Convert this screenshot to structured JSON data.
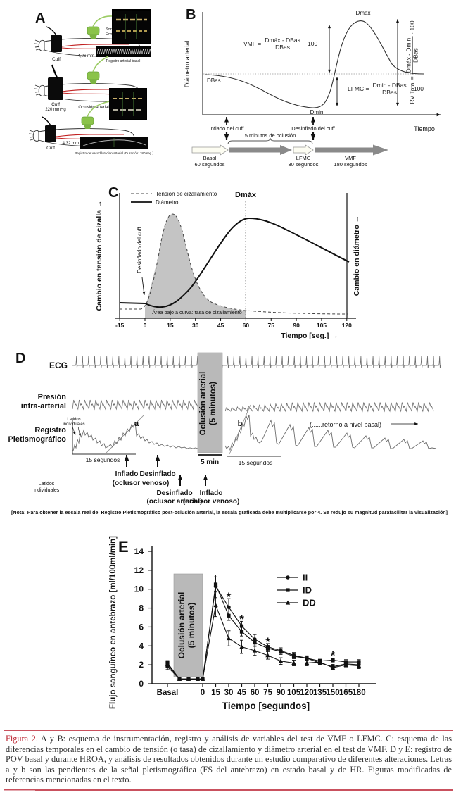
{
  "colors": {
    "accent_red": "#bb2430",
    "rule_red": "#c9515e",
    "artery_red": "#c22222",
    "probe_green": "#8bc34a",
    "occlusion_gray": "#b9b9b9",
    "trace_gray": "#6d6d6d"
  },
  "panelA": {
    "label": "A",
    "probe_label1": "Sonda",
    "probe_label2": "Ecográfica",
    "rows": [
      {
        "cuff": "Cuff",
        "measurement": "4,06 mm",
        "record": "Registro arterial basal"
      },
      {
        "cuff": "Cuff",
        "pressure": "220 mmHg",
        "occlusion": "Oclusión arterial"
      },
      {
        "cuff": "Cuff",
        "measurement": "4,32 mm",
        "record": "Registro de vasodilatación arterial (Duración: 180 seg.)"
      }
    ]
  },
  "panelB": {
    "label": "B",
    "y_axis": "Diámetro arterial",
    "x_axis": "Tiempo",
    "dbas": "DBas",
    "dmin": "Dmin",
    "dmax": "Dmáx",
    "inflate": "Inflado del cuff",
    "deflate": "Desinflado del cuff",
    "occlusion_brace": "5 minutos de oclusión",
    "formulas": {
      "vmf": {
        "lhs": "VMF =",
        "num": "Dmáx - DBas",
        "den": "DBas",
        "rhs": "· 100"
      },
      "lfmc": {
        "lhs": "LFMC =",
        "num": "Dmin - DBas",
        "den": "DBas",
        "rhs": "· 100"
      },
      "rv": {
        "lhs": "RV Total =",
        "num": "Dmáx - Dmin",
        "den": "DBas",
        "rhs": "· 100"
      }
    },
    "timeline": [
      {
        "name": "Basal",
        "dur": "60 segundos"
      },
      {
        "name": "LFMC",
        "dur": "30 segundos"
      },
      {
        "name": "VMF",
        "dur": "180 segundos"
      }
    ]
  },
  "panelC": {
    "label": "C",
    "legend": [
      {
        "label": "Tensión de cizallamiento"
      },
      {
        "label": "Diámetro"
      }
    ],
    "dmax": "Dmáx",
    "deflate": "Desinflado del cuff",
    "area_label": "Área bajo a curva: tasa de cizallamiento",
    "y_left": "Cambio en tensión de cizalla →",
    "y_right": "Cambio en diámetro →",
    "x_ticks": [
      "-15",
      "0",
      "15",
      "30",
      "45",
      "60",
      "75",
      "90",
      "105",
      "120"
    ],
    "x_label": "Tiempo [seg.] →"
  },
  "panelD": {
    "label": "D",
    "ecg": "ECG",
    "pressure1": "Presión",
    "pressure2": "intra-arterial",
    "pleth1": "Registro",
    "pleth2": "Pletismográfico",
    "occlusion": [
      "Oclusión arterial",
      "(5 minutos)"
    ],
    "scale_pre": "15 segundos",
    "scale_occ": "5 min",
    "scale_post": "15 segundos",
    "latidos_small1": "Latidos",
    "latidos_small2": "individuales",
    "latidos1": "Latidos",
    "latidos2": "individuales",
    "a": "a",
    "b": "b",
    "inflado1": "Inflado",
    "desinflado1": "Desinflado",
    "oclusor_venoso1": "(oclusor venoso)",
    "desinflado2": "Desinflado",
    "oclusor_arterial": "(oclusor arterial)",
    "inflado2": "Inflado",
    "oclusor_venoso2": "(oclusor venoso)",
    "retorno": "(......retorno a nivel basal)",
    "note": "[Nota: Para obtener la escala real del Registro Pletismográfico post-oclusión arterial, la escala graficada debe multiplicarse por 4. Se redujo su magnitud parafacilitar la visualización]"
  },
  "panelE": {
    "label": "E"
  },
  "chart_data": {
    "type": "line",
    "ylabel": "Flujo sanguíneo en antebrazo [ml/100ml/min]",
    "xlabel": "Tiempo [segundos]",
    "ylim": [
      0,
      14
    ],
    "yticks": [
      0,
      2,
      4,
      6,
      8,
      10,
      12,
      14
    ],
    "x_ticks": [
      "Basal",
      "0",
      "15",
      "30",
      "45",
      "60",
      "75",
      "90",
      "105",
      "120",
      "135",
      "150",
      "165",
      "180"
    ],
    "times": [
      0,
      15,
      30,
      45,
      60,
      75,
      90,
      105,
      120,
      135,
      150,
      165,
      180
    ],
    "occlusion_label": [
      "Oclusión arterial",
      "(5 minutos)"
    ],
    "legend_position": "upper right",
    "grid": false,
    "series": [
      {
        "name": "II",
        "marker": "circle",
        "basal": 1.8,
        "basal_err": 0.3,
        "occlusion": [
          0.5,
          0.5,
          0.5
        ],
        "values": [
          0.5,
          10.3,
          8.1,
          6.1,
          4.7,
          3.9,
          3.5,
          3.0,
          2.7,
          2.2,
          1.8,
          2.1,
          2.0
        ],
        "err": [
          0,
          1.2,
          0.9,
          0.5,
          0.5,
          0.35,
          0.3,
          0.3,
          0.25,
          0.2,
          0.25,
          0.3,
          0.3
        ]
      },
      {
        "name": "ID",
        "marker": "square",
        "basal": 2.2,
        "basal_err": 0.25,
        "occlusion": [
          0.5,
          0.5,
          0.5
        ],
        "values": [
          0.5,
          10.5,
          7.2,
          5.5,
          4.35,
          3.75,
          3.4,
          2.9,
          2.7,
          2.4,
          2.5,
          2.3,
          2.3
        ],
        "err": [
          0,
          0.8,
          0.5,
          0.45,
          0.4,
          0.3,
          0.3,
          0.25,
          0.25,
          0.2,
          0.2,
          0.25,
          0.25
        ]
      },
      {
        "name": "DD",
        "marker": "triangle",
        "basal": 2.05,
        "basal_err": 0.3,
        "occlusion": [
          0.5,
          0.5,
          0.5
        ],
        "values": [
          0.5,
          8.3,
          4.8,
          3.9,
          3.5,
          3.0,
          2.4,
          2.2,
          2.2,
          2.3,
          1.7,
          2.0,
          1.9
        ],
        "err": [
          0,
          1.2,
          0.8,
          0.7,
          0.5,
          0.4,
          0.35,
          0.3,
          0.3,
          0.25,
          0.2,
          0.3,
          0.3
        ]
      }
    ],
    "asterisks": [
      {
        "t": 30,
        "v": 9.4
      },
      {
        "t": 45,
        "v": 7.0
      },
      {
        "t": 75,
        "v": 4.6
      },
      {
        "t": 150,
        "v": 3.15
      }
    ]
  },
  "caption": {
    "label": "Figura 2.",
    "text": "A y B: esquema de instrumentación, registro y análisis de variables del test de VMF o LFMC. C: esquema de las diferencias temporales en el cambio de tensión (o tasa) de cizallamiento y diámetro arterial en el test de VMF. D y E: registro de POV basal y durante HROA, y análisis de resultados obtenidos durante un estudio comparativo de diferentes alteraciones. Letras a y b son las pendientes de la señal pletismográfica (FS del antebrazo) en estado basal y de HR. Figuras modificadas de referencias mencionadas en el texto."
  }
}
